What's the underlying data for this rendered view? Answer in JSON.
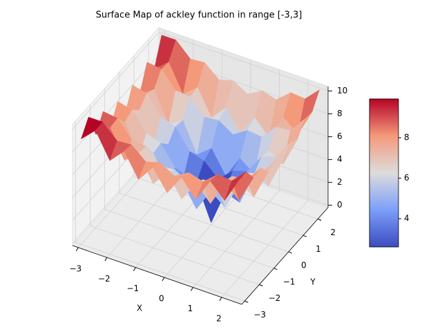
{
  "chart_data": {
    "type": "surface",
    "title": "Surface Map of ackley function in range [-3,3]",
    "xlabel": "X",
    "ylabel": "Y",
    "colormap": "coolwarm",
    "x": [
      -3,
      -2.5,
      -2,
      -1.5,
      -1,
      -0.5,
      0,
      0.5,
      1,
      1.5,
      2,
      2.5
    ],
    "y": [
      -3,
      -2.5,
      -2,
      -1.5,
      -1,
      -0.5,
      0,
      0.5,
      1,
      1.5,
      2,
      2.5
    ],
    "z": [
      [
        9.02,
        10.21,
        7.99,
        9.27,
        7.21,
        8.71,
        6.92,
        8.71,
        7.21,
        9.27,
        7.99,
        10.21
      ],
      [
        10.21,
        10.22,
        9.0,
        9.11,
        8.05,
        8.4,
        7.67,
        8.4,
        8.05,
        9.11,
        9.0,
        10.22
      ],
      [
        7.99,
        9.0,
        6.59,
        7.67,
        5.42,
        6.78,
        4.93,
        6.78,
        5.42,
        7.67,
        6.59,
        9.0
      ],
      [
        9.27,
        9.11,
        7.67,
        7.53,
        6.22,
        6.36,
        5.54,
        6.36,
        6.22,
        7.53,
        7.67,
        9.11
      ],
      [
        7.21,
        8.05,
        5.42,
        6.22,
        3.63,
        4.64,
        2.64,
        4.64,
        3.63,
        6.22,
        5.42,
        8.05
      ],
      [
        8.71,
        8.4,
        6.78,
        6.36,
        4.64,
        4.25,
        3.09,
        4.25,
        4.64,
        6.36,
        6.78,
        8.4
      ],
      [
        6.92,
        7.67,
        4.93,
        5.54,
        2.64,
        3.09,
        0,
        3.09,
        2.64,
        5.54,
        4.93,
        7.67
      ],
      [
        8.71,
        8.4,
        6.78,
        6.36,
        4.64,
        4.25,
        3.09,
        4.25,
        4.64,
        6.36,
        6.78,
        8.4
      ],
      [
        7.21,
        8.05,
        5.42,
        6.22,
        3.63,
        4.64,
        2.64,
        4.64,
        3.63,
        6.22,
        5.42,
        8.05
      ],
      [
        9.27,
        9.11,
        7.67,
        7.53,
        6.22,
        6.36,
        5.54,
        6.36,
        6.22,
        7.53,
        7.67,
        9.11
      ],
      [
        7.99,
        9.0,
        6.59,
        7.67,
        5.42,
        6.78,
        4.93,
        6.78,
        5.42,
        7.67,
        6.59,
        9.0
      ],
      [
        10.21,
        10.22,
        9.0,
        9.11,
        8.05,
        8.4,
        7.67,
        8.4,
        8.05,
        9.11,
        9.0,
        10.22
      ]
    ],
    "xlim": [
      -3.2,
      2.7
    ],
    "ylim": [
      -3.2,
      2.7
    ],
    "zlim": [
      -0.2,
      10.4
    ],
    "xticks": [
      {
        "value": -3,
        "label": "−3"
      },
      {
        "value": -2,
        "label": "−2"
      },
      {
        "value": -1,
        "label": "−1"
      },
      0,
      1,
      2
    ],
    "yticks": [
      {
        "value": -3,
        "label": "−3"
      },
      {
        "value": -2,
        "label": "−2"
      },
      {
        "value": -1,
        "label": "−1"
      },
      0,
      1,
      2
    ],
    "zticks": [
      0,
      2,
      4,
      6,
      8,
      10
    ],
    "colorbar_ticks": [
      4,
      6,
      8
    ],
    "grid": true
  }
}
